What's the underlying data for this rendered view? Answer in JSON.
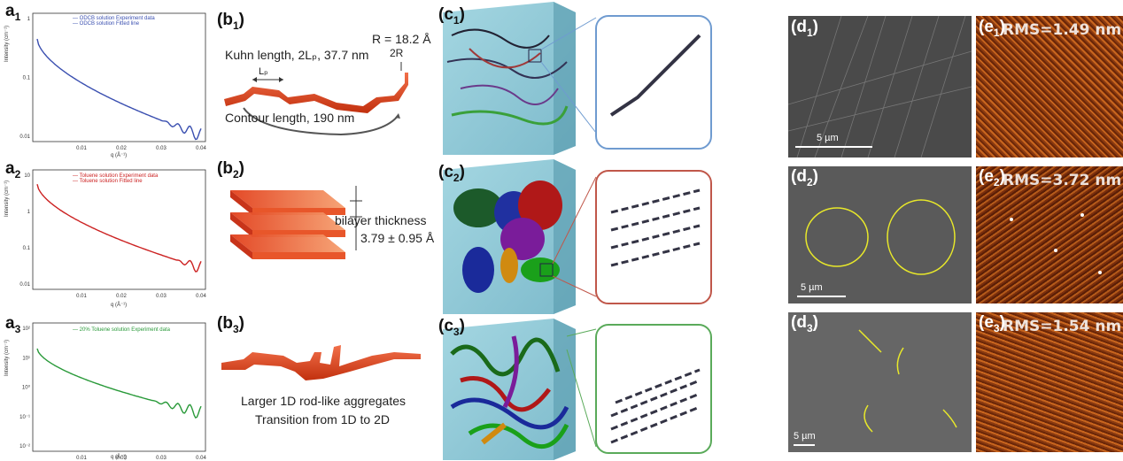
{
  "panels": {
    "a1": {
      "letter": "a",
      "sub": "1"
    },
    "a2": {
      "letter": "a",
      "sub": "2"
    },
    "a3": {
      "letter": "a",
      "sub": "3"
    },
    "b1": {
      "letter": "b",
      "sub": "1"
    },
    "b2": {
      "letter": "b",
      "sub": "2"
    },
    "b3": {
      "letter": "b",
      "sub": "3"
    },
    "c1": {
      "letter": "c",
      "sub": "1"
    },
    "c2": {
      "letter": "c",
      "sub": "2"
    },
    "c3": {
      "letter": "c",
      "sub": "3"
    },
    "d1": {
      "letter": "d",
      "sub": "1"
    },
    "d2": {
      "letter": "d",
      "sub": "2"
    },
    "d3": {
      "letter": "d",
      "sub": "3"
    },
    "e1": {
      "letter": "e",
      "sub": "1"
    },
    "e2": {
      "letter": "e",
      "sub": "2"
    },
    "e3": {
      "letter": "e",
      "sub": "3"
    }
  },
  "plots": {
    "ylabel": "Intensity (cm⁻¹)",
    "xlabel": "q (Å⁻¹)",
    "xticks": [
      "0.01",
      "0.02",
      "0.03",
      "0.04"
    ],
    "p1": {
      "legend": [
        "ODCB solution Experiment data",
        "ODCB solution Fitted line"
      ],
      "yticks": [
        "1",
        "0.1",
        "0.01"
      ],
      "color": "#3a4fb0"
    },
    "p2": {
      "legend": [
        "Toluene solution Experiment data",
        "Toluene solution Fitted line"
      ],
      "yticks": [
        "10",
        "1",
        "0.1",
        "0.01"
      ],
      "color": "#cc2222"
    },
    "p3": {
      "legend": [
        "20% Toluene solution Experiment data"
      ],
      "yticks": [
        "10²",
        "10¹",
        "10⁰",
        "10⁻¹",
        "10⁻²"
      ],
      "color": "#2a9a3a"
    }
  },
  "b1": {
    "kuhn": "Kuhn length, 2Lₚ, 37.7 nm",
    "lp": "Lₚ",
    "radius": "R = 18.2 Å",
    "diameter": "2R",
    "contour": "Contour length, 190 nm"
  },
  "b2": {
    "thickness_label": "bilayer thickness",
    "thickness_value": "3.79 ± 0.95 Å"
  },
  "b3": {
    "line1": "Larger 1D rod-like aggregates",
    "line2": "Transition from 1D to 2D"
  },
  "micrographs": {
    "d1_scale": "5 µm",
    "d2_scale": "5 µm",
    "d3_scale": "5 µm",
    "e1_rms": "RMS=1.49 nm",
    "e2_rms": "RMS=3.72 nm",
    "e3_rms": "RMS=1.54 nm"
  },
  "colors": {
    "box": "#8ec8d6",
    "c1_border": "#6f9bd0",
    "c2_border": "#c0574a",
    "c3_border": "#5aaa5a",
    "ribbon": "#e0401c",
    "afm": "#b3521a"
  }
}
